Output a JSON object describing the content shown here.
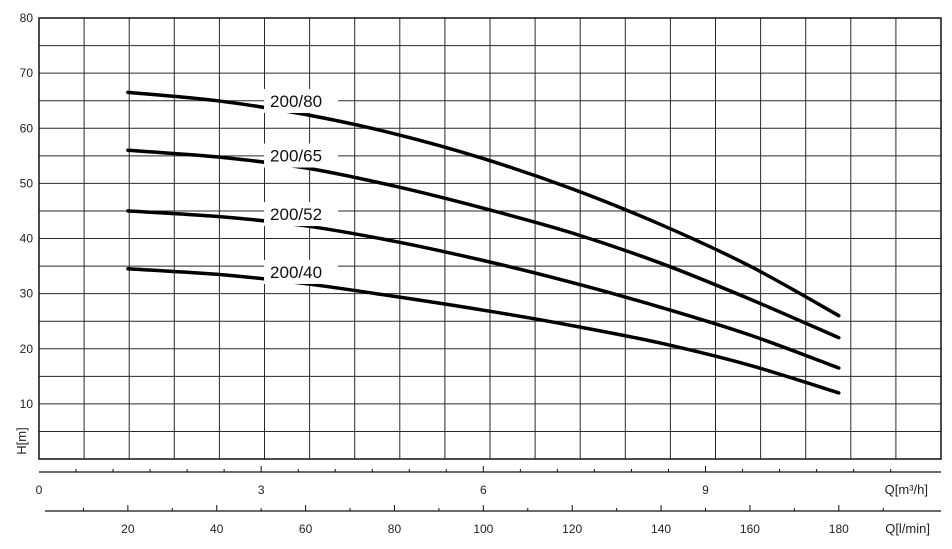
{
  "chart_data": {
    "type": "line",
    "ylabel": "H[m]",
    "x_label_m3h": "Q[m³/h]",
    "x_label_lmin": "Q[l/min]",
    "ylim": [
      0,
      80
    ],
    "yticks": [
      10,
      20,
      30,
      40,
      50,
      60,
      70,
      80
    ],
    "xlim_lmin": [
      0,
      203
    ],
    "xticks_m3h": [
      0,
      3,
      6,
      9
    ],
    "xticks_lmin": [
      20,
      40,
      60,
      80,
      100,
      120,
      140,
      160,
      180
    ],
    "grid": true,
    "series": [
      {
        "name": "200/80",
        "x_lmin": [
          20,
          40,
          60,
          80,
          100,
          120,
          140,
          160,
          180
        ],
        "y": [
          66.5,
          65,
          62.5,
          59,
          54.5,
          49,
          42.5,
          35,
          26
        ]
      },
      {
        "name": "200/65",
        "x_lmin": [
          20,
          40,
          60,
          80,
          100,
          120,
          140,
          160,
          180
        ],
        "y": [
          56,
          54.8,
          52.8,
          49.5,
          45.5,
          41,
          35.5,
          29,
          22
        ]
      },
      {
        "name": "200/52",
        "x_lmin": [
          20,
          40,
          60,
          80,
          100,
          120,
          140,
          160,
          180
        ],
        "y": [
          45,
          44,
          42.3,
          39.5,
          36,
          32,
          27.5,
          22.5,
          16.5
        ]
      },
      {
        "name": "200/40",
        "x_lmin": [
          20,
          40,
          60,
          80,
          100,
          120,
          140,
          160,
          180
        ],
        "y": [
          34.5,
          33.5,
          31.8,
          29.5,
          27,
          24.2,
          21,
          17,
          12
        ]
      }
    ]
  }
}
